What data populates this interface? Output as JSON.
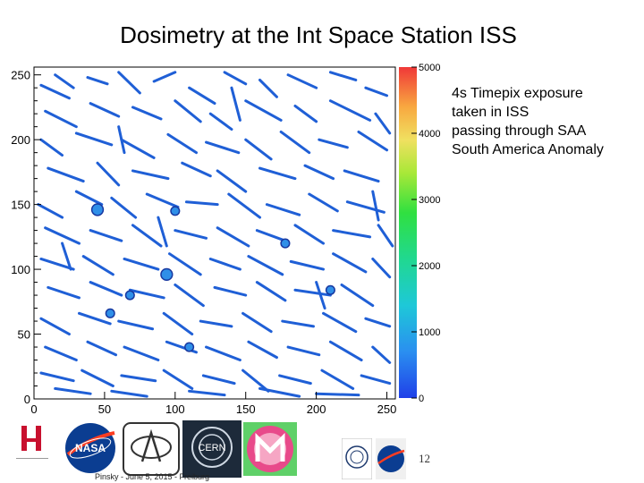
{
  "slide": {
    "title": "Dosimetry at the Int Space Station ISS",
    "caption_lines": [
      "4s Timepix exposure",
      "taken in ISS",
      "passing through SAA",
      "South America Anomaly"
    ],
    "page_number": "12",
    "footer_text": "Pinsky - June 5, 2015 - Freiburg"
  },
  "chart_data": {
    "type": "heatmap",
    "title": "",
    "xlabel": "",
    "ylabel": "",
    "xlim": [
      0,
      256
    ],
    "ylim": [
      0,
      256
    ],
    "x_ticks": [
      0,
      50,
      100,
      150,
      200,
      250
    ],
    "y_ticks": [
      0,
      50,
      100,
      150,
      200,
      250
    ],
    "colorbar": {
      "range": [
        0,
        5000
      ],
      "ticks": [
        0,
        1000,
        2000,
        3000,
        4000,
        5000
      ]
    },
    "track_color": "#1f5fd6",
    "blob_color": "#2f8fe8",
    "tracks": [
      [
        5,
        242,
        25,
        232
      ],
      [
        15,
        250,
        28,
        240
      ],
      [
        38,
        248,
        52,
        243
      ],
      [
        60,
        252,
        75,
        236
      ],
      [
        85,
        245,
        100,
        252
      ],
      [
        110,
        240,
        128,
        228
      ],
      [
        135,
        252,
        150,
        243
      ],
      [
        160,
        246,
        172,
        233
      ],
      [
        180,
        250,
        200,
        240
      ],
      [
        210,
        252,
        228,
        246
      ],
      [
        235,
        240,
        250,
        234
      ],
      [
        8,
        222,
        30,
        210
      ],
      [
        40,
        228,
        60,
        218
      ],
      [
        70,
        225,
        90,
        216
      ],
      [
        100,
        230,
        118,
        214
      ],
      [
        125,
        220,
        140,
        208
      ],
      [
        150,
        230,
        175,
        215
      ],
      [
        185,
        226,
        200,
        214
      ],
      [
        210,
        230,
        238,
        215
      ],
      [
        242,
        220,
        252,
        205
      ],
      [
        5,
        200,
        20,
        188
      ],
      [
        30,
        205,
        55,
        196
      ],
      [
        62,
        200,
        85,
        186
      ],
      [
        95,
        204,
        115,
        190
      ],
      [
        122,
        198,
        145,
        190
      ],
      [
        150,
        200,
        168,
        185
      ],
      [
        175,
        206,
        195,
        190
      ],
      [
        202,
        200,
        222,
        194
      ],
      [
        230,
        206,
        250,
        192
      ],
      [
        10,
        178,
        35,
        168
      ],
      [
        45,
        182,
        60,
        165
      ],
      [
        70,
        176,
        95,
        170
      ],
      [
        105,
        182,
        125,
        172
      ],
      [
        130,
        176,
        150,
        160
      ],
      [
        160,
        178,
        185,
        170
      ],
      [
        192,
        180,
        212,
        170
      ],
      [
        220,
        176,
        244,
        168
      ],
      [
        3,
        150,
        20,
        140
      ],
      [
        30,
        160,
        48,
        150
      ],
      [
        55,
        155,
        72,
        140
      ],
      [
        80,
        158,
        102,
        148
      ],
      [
        108,
        152,
        130,
        150
      ],
      [
        138,
        158,
        160,
        140
      ],
      [
        165,
        150,
        188,
        142
      ],
      [
        195,
        158,
        215,
        145
      ],
      [
        222,
        152,
        248,
        144
      ],
      [
        8,
        132,
        32,
        120
      ],
      [
        40,
        130,
        62,
        122
      ],
      [
        70,
        134,
        90,
        118
      ],
      [
        100,
        130,
        122,
        124
      ],
      [
        130,
        132,
        152,
        118
      ],
      [
        158,
        130,
        178,
        122
      ],
      [
        185,
        134,
        205,
        120
      ],
      [
        212,
        130,
        238,
        125
      ],
      [
        244,
        134,
        254,
        118
      ],
      [
        5,
        108,
        28,
        100
      ],
      [
        35,
        110,
        56,
        96
      ],
      [
        64,
        108,
        88,
        100
      ],
      [
        96,
        112,
        118,
        96
      ],
      [
        125,
        108,
        146,
        100
      ],
      [
        152,
        110,
        176,
        96
      ],
      [
        182,
        106,
        205,
        100
      ],
      [
        212,
        112,
        235,
        98
      ],
      [
        240,
        108,
        252,
        94
      ],
      [
        10,
        86,
        32,
        78
      ],
      [
        40,
        90,
        62,
        80
      ],
      [
        68,
        84,
        92,
        78
      ],
      [
        100,
        88,
        120,
        72
      ],
      [
        128,
        86,
        150,
        80
      ],
      [
        158,
        90,
        178,
        76
      ],
      [
        185,
        84,
        210,
        80
      ],
      [
        218,
        88,
        240,
        72
      ],
      [
        5,
        62,
        25,
        50
      ],
      [
        32,
        66,
        54,
        58
      ],
      [
        60,
        60,
        84,
        54
      ],
      [
        92,
        66,
        112,
        50
      ],
      [
        118,
        60,
        140,
        56
      ],
      [
        148,
        66,
        168,
        52
      ],
      [
        176,
        60,
        198,
        56
      ],
      [
        205,
        66,
        228,
        52
      ],
      [
        235,
        62,
        252,
        56
      ],
      [
        8,
        40,
        30,
        30
      ],
      [
        38,
        44,
        58,
        34
      ],
      [
        64,
        40,
        88,
        30
      ],
      [
        94,
        44,
        115,
        36
      ],
      [
        122,
        40,
        146,
        30
      ],
      [
        152,
        44,
        172,
        32
      ],
      [
        180,
        40,
        202,
        34
      ],
      [
        210,
        44,
        232,
        30
      ],
      [
        240,
        40,
        252,
        28
      ],
      [
        5,
        20,
        28,
        14
      ],
      [
        34,
        22,
        56,
        10
      ],
      [
        62,
        18,
        86,
        14
      ],
      [
        92,
        22,
        112,
        8
      ],
      [
        120,
        18,
        142,
        12
      ],
      [
        148,
        22,
        166,
        6
      ],
      [
        174,
        18,
        196,
        12
      ],
      [
        204,
        22,
        226,
        8
      ],
      [
        232,
        18,
        252,
        12
      ],
      [
        15,
        8,
        40,
        4
      ],
      [
        55,
        6,
        80,
        2
      ],
      [
        110,
        6,
        135,
        3
      ],
      [
        160,
        8,
        188,
        2
      ],
      [
        200,
        4,
        230,
        3
      ],
      [
        20,
        120,
        26,
        100
      ],
      [
        140,
        240,
        146,
        215
      ],
      [
        88,
        140,
        94,
        118
      ],
      [
        200,
        90,
        206,
        70
      ],
      [
        60,
        210,
        64,
        190
      ],
      [
        240,
        160,
        244,
        138
      ]
    ],
    "blobs": [
      [
        45,
        146,
        4
      ],
      [
        94,
        96,
        4
      ],
      [
        100,
        145,
        3
      ],
      [
        68,
        80,
        3
      ],
      [
        210,
        84,
        3
      ],
      [
        178,
        120,
        3
      ],
      [
        54,
        66,
        3
      ],
      [
        110,
        40,
        3
      ]
    ]
  }
}
